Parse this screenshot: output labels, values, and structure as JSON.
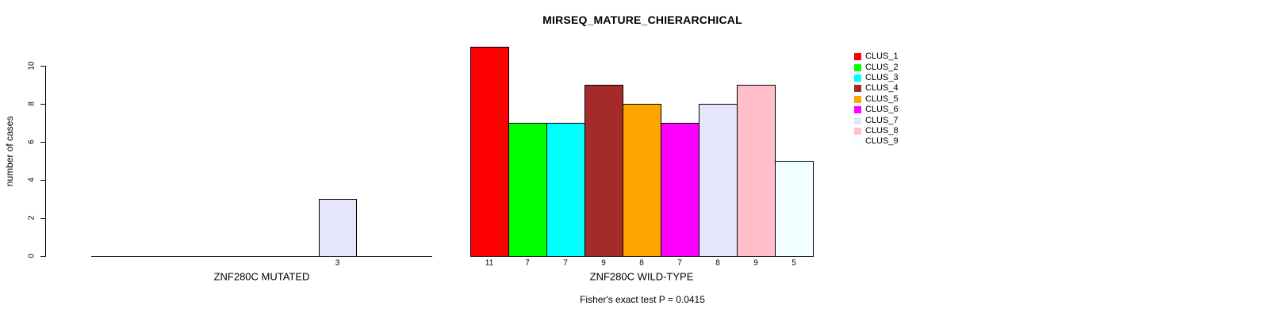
{
  "chart_data": [
    {
      "type": "bar",
      "panel": "left",
      "xlabel": "ZNF280C MUTATED",
      "ylabel": "number of cases",
      "ylim": [
        0,
        10
      ],
      "yticks": [
        0,
        2,
        4,
        6,
        8,
        10
      ],
      "grid": false,
      "categories": [
        "CLUS_1",
        "CLUS_2",
        "CLUS_3",
        "CLUS_4",
        "CLUS_5",
        "CLUS_6",
        "CLUS_7",
        "CLUS_8",
        "CLUS_9"
      ],
      "values": [
        0,
        0,
        0,
        0,
        0,
        0,
        3,
        0,
        0
      ],
      "bar_labels": [
        "",
        "",
        "",
        "",
        "",
        "",
        "3",
        "",
        ""
      ],
      "colors": [
        "#FF0000",
        "#00FF00",
        "#00FFFF",
        "#A52A2A",
        "#FFA500",
        "#FF00FF",
        "#E6E6FA",
        "#FFC0CB",
        "#F0FFFF"
      ]
    },
    {
      "type": "bar",
      "panel": "right",
      "title": "MIRSEQ_MATURE_CHIERARCHICAL",
      "xlabel": "ZNF280C WILD-TYPE",
      "note": "Fisher's exact test P = 0.0415",
      "ylim": [
        0,
        10
      ],
      "grid": false,
      "categories": [
        "CLUS_1",
        "CLUS_2",
        "CLUS_3",
        "CLUS_4",
        "CLUS_5",
        "CLUS_6",
        "CLUS_7",
        "CLUS_8",
        "CLUS_9"
      ],
      "values": [
        11,
        7,
        7,
        9,
        8,
        7,
        8,
        9,
        5
      ],
      "bar_labels": [
        "11",
        "7",
        "7",
        "9",
        "8",
        "7",
        "8",
        "9",
        "5"
      ],
      "colors": [
        "#FF0000",
        "#00FF00",
        "#00FFFF",
        "#A52A2A",
        "#FFA500",
        "#FF00FF",
        "#E6E6FA",
        "#FFC0CB",
        "#F0FFFF"
      ]
    }
  ],
  "legend": {
    "position": "right",
    "entries": [
      {
        "label": "CLUS_1",
        "color": "#FF0000"
      },
      {
        "label": "CLUS_2",
        "color": "#00FF00"
      },
      {
        "label": "CLUS_3",
        "color": "#00FFFF"
      },
      {
        "label": "CLUS_4",
        "color": "#A52A2A"
      },
      {
        "label": "CLUS_5",
        "color": "#FFA500"
      },
      {
        "label": "CLUS_6",
        "color": "#FF00FF"
      },
      {
        "label": "CLUS_7",
        "color": "#E6E6FA"
      },
      {
        "label": "CLUS_8",
        "color": "#FFC0CB"
      },
      {
        "label": "CLUS_9",
        "color": "#F0FFFF"
      }
    ]
  }
}
